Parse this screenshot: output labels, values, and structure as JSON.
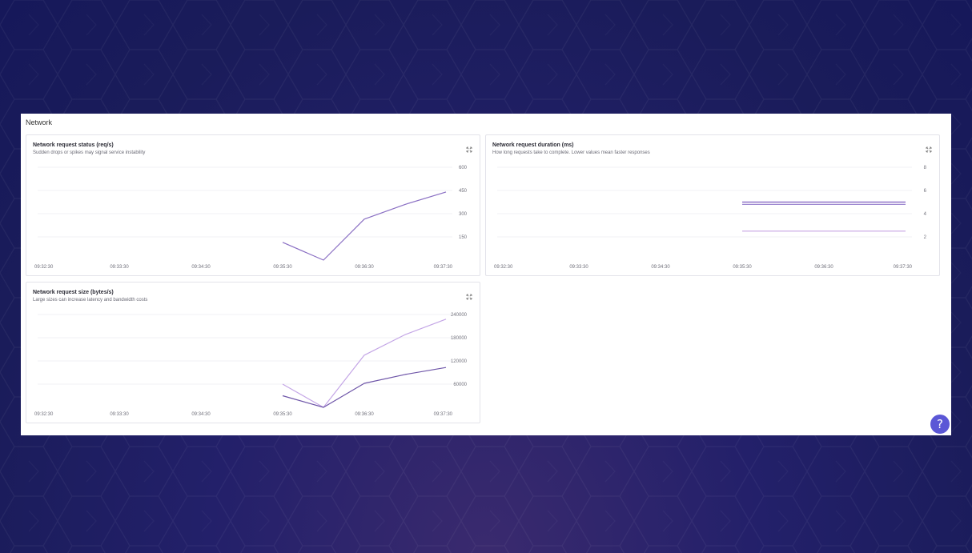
{
  "panel": {
    "title": "Network"
  },
  "cards": [
    {
      "id": "status",
      "title": "Network request status (req/s)",
      "description": "Sudden drops or spikes may signal service instability",
      "expand_icon": "expand-icon",
      "chart_data": {
        "type": "line",
        "x": [
          "09:35:30",
          "09:36:00",
          "09:36:30",
          "09:37:00",
          "09:37:30"
        ],
        "xticks": [
          "09:32:30",
          "09:33:30",
          "09:34:30",
          "09:35:30",
          "09:36:30",
          "09:37:30"
        ],
        "yticks": [
          150,
          300,
          450,
          600
        ],
        "ylim": [
          0,
          600
        ],
        "grid": true,
        "series": [
          {
            "color": "#8a6fc3",
            "values": [
              115,
              0,
              265,
              360,
              440
            ]
          }
        ]
      }
    },
    {
      "id": "duration",
      "title": "Network request duration (ms)",
      "description": "How long requests take to complete. Lower values mean faster responses",
      "expand_icon": "expand-icon",
      "chart_data": {
        "type": "line",
        "x": [
          "09:35:30",
          "09:36:00",
          "09:36:30",
          "09:37:00",
          "09:37:30"
        ],
        "xticks": [
          "09:32:30",
          "09:33:30",
          "09:34:30",
          "09:35:30",
          "09:36:30",
          "09:37:30"
        ],
        "yticks": [
          2,
          4,
          6,
          8
        ],
        "ylim": [
          0,
          8
        ],
        "grid": true,
        "series": [
          {
            "color": "#7e5cbf",
            "values": [
              5.0,
              5.0,
              5.0,
              5.0,
              5.0
            ]
          },
          {
            "color": "#9c86cf",
            "values": [
              4.8,
              4.8,
              4.8,
              4.8,
              4.8
            ]
          },
          {
            "color": "#c7a4e3",
            "values": [
              2.5,
              2.5,
              2.5,
              2.5,
              2.5
            ]
          }
        ]
      }
    },
    {
      "id": "size",
      "title": "Network request size (bytes/s)",
      "description": "Large sizes can increase latency and bandwidth costs",
      "expand_icon": "expand-icon",
      "chart_data": {
        "type": "line",
        "x": [
          "09:35:30",
          "09:36:00",
          "09:36:30",
          "09:37:00",
          "09:37:30"
        ],
        "xticks": [
          "09:32:30",
          "09:33:30",
          "09:34:30",
          "09:35:30",
          "09:36:30",
          "09:37:30"
        ],
        "yticks": [
          60000,
          120000,
          180000,
          240000
        ],
        "ylim": [
          0,
          240000
        ],
        "grid": true,
        "series": [
          {
            "color": "#c4a6e6",
            "values": [
              60000,
              0,
              135000,
              188000,
              228000
            ]
          },
          {
            "color": "#6e55a8",
            "values": [
              30000,
              0,
              62000,
              85000,
              103000
            ]
          }
        ]
      }
    }
  ],
  "help_button": {
    "label": "?",
    "icon": "help-icon"
  }
}
